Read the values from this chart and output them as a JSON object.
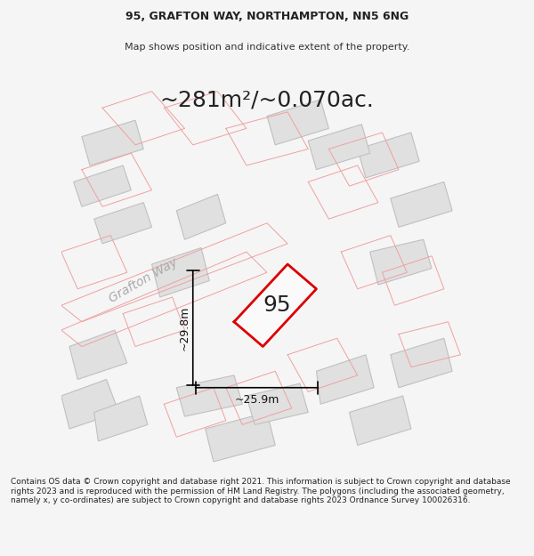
{
  "title_line1": "95, GRAFTON WAY, NORTHAMPTON, NN5 6NG",
  "title_line2": "Map shows position and indicative extent of the property.",
  "area_text": "~281m²/~0.070ac.",
  "dim_height": "~29.8m",
  "dim_width": "~25.9m",
  "property_number": "95",
  "road_label": "Grafton Way",
  "footer_text": "Contains OS data © Crown copyright and database right 2021. This information is subject to Crown copyright and database rights 2023 and is reproduced with the permission of HM Land Registry. The polygons (including the associated geometry, namely x, y co-ordinates) are subject to Crown copyright and database rights 2023 Ordnance Survey 100026316.",
  "bg_color": "#f5f5f5",
  "map_bg": "#ffffff",
  "building_fill": "#e0e0e0",
  "building_edge_color": "#c8c8c8",
  "pink_line_color": "#f0a0a0",
  "red_polygon_color": "#dd0000",
  "dim_line_color": "#000000",
  "title_fontsize": 9,
  "subtitle_fontsize": 8,
  "area_fontsize": 18,
  "road_fontsize": 10,
  "number_fontsize": 18,
  "dim_fontsize": 9,
  "footer_fontsize": 6.5
}
